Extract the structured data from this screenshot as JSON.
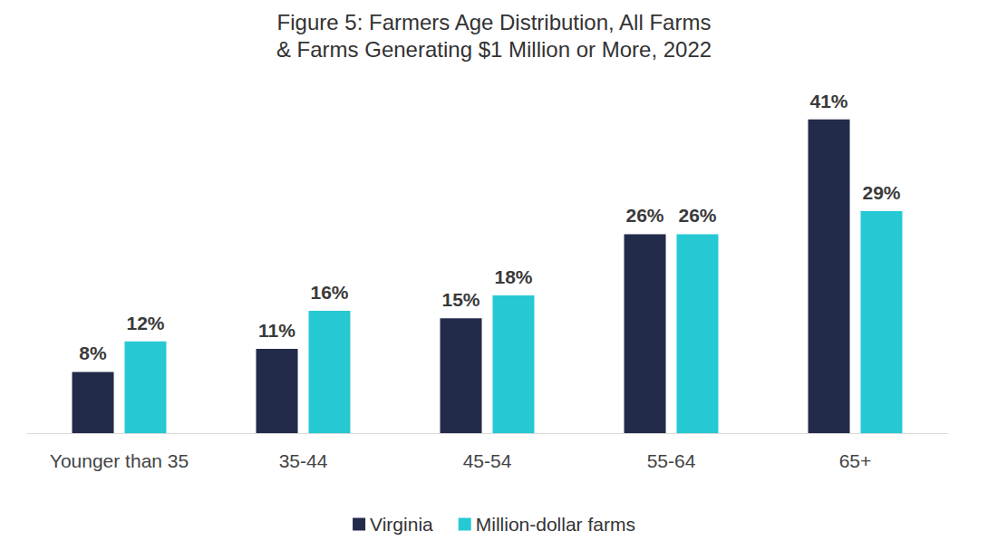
{
  "chart_data": {
    "type": "bar",
    "title": "Figure 5: Farmers Age Distribution, All Farms\n& Farms Generating $1 Million or More, 2022",
    "categories": [
      "Younger than 35",
      "35-44",
      "45-54",
      "55-64",
      "65+"
    ],
    "series": [
      {
        "name": "Virginia",
        "color": "#232b4a",
        "values": [
          8,
          11,
          15,
          26,
          41
        ],
        "value_labels": [
          "8%",
          "11%",
          "15%",
          "26%",
          "41%"
        ]
      },
      {
        "name": "Million-dollar farms",
        "color": "#26c9d3",
        "values": [
          12,
          16,
          18,
          26,
          29
        ],
        "value_labels": [
          "12%",
          "16%",
          "18%",
          "26%",
          "29%"
        ]
      }
    ],
    "ylim": [
      0,
      45
    ],
    "grid": false,
    "legend": "bottom",
    "data_labels": true,
    "tick_labels": "x"
  }
}
